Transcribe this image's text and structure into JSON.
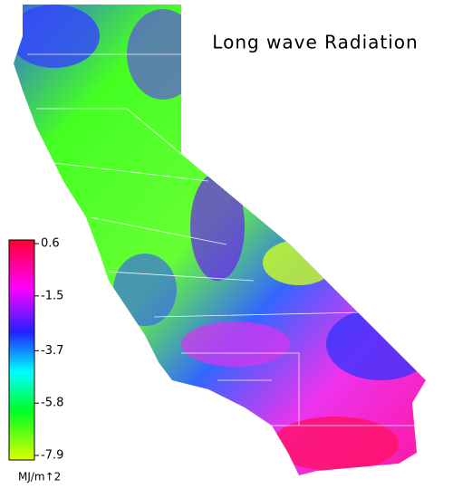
{
  "title": "Long wave Radiation",
  "colorbar": {
    "lim": [
      -7.9,
      0.6
    ],
    "ticks": [
      0.6,
      -1.5,
      -3.7,
      -5.8,
      -7.9
    ],
    "unit": "MJ/m↑2"
  }
}
